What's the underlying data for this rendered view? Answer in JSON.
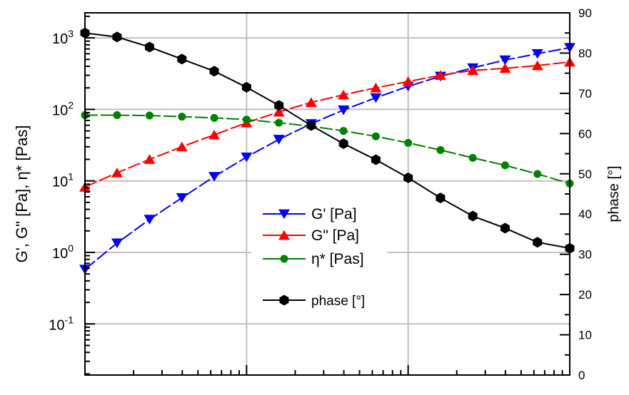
{
  "chart_data": {
    "type": "line",
    "x_log_scale": true,
    "x_tick_labels": [],
    "x": [
      0.1,
      0.158,
      0.251,
      0.398,
      0.631,
      1.0,
      1.585,
      2.512,
      3.981,
      6.31,
      10.0,
      15.85,
      25.12,
      39.81,
      63.1,
      100.0
    ],
    "left_axis": {
      "label": "G', G\" [Pa], η* [Pas]",
      "scale": "log",
      "range": [
        0.02,
        1500
      ],
      "tick_labels": [
        {
          "base": "10",
          "exp": "3"
        },
        {
          "base": "10",
          "exp": "2"
        },
        {
          "base": "10",
          "exp": "1"
        },
        {
          "base": "10",
          "exp": "0"
        },
        {
          "base": "10",
          "exp": "-1"
        }
      ]
    },
    "right_axis": {
      "label": "phase [°]",
      "scale": "linear",
      "range": [
        0,
        90
      ],
      "tick_labels": [
        "0",
        "10",
        "20",
        "30",
        "40",
        "50",
        "60",
        "70",
        "80",
        "90"
      ]
    },
    "series": [
      {
        "name": "G' [Pa]",
        "axis": "left",
        "color": "#0000ff",
        "marker": "triangle-down",
        "values": [
          0.58,
          1.35,
          2.9,
          5.8,
          11.5,
          21.5,
          38,
          63,
          98,
          145,
          210,
          290,
          380,
          490,
          600,
          730
        ]
      },
      {
        "name": "G\" [Pa]",
        "axis": "left",
        "color": "#ff0000",
        "marker": "triangle-up",
        "values": [
          8.2,
          13,
          20,
          30,
          44,
          65,
          92,
          125,
          160,
          200,
          245,
          300,
          350,
          375,
          410,
          460
        ]
      },
      {
        "name": "η* [Pas]",
        "axis": "left",
        "color": "#008000",
        "marker": "circle",
        "values": [
          83,
          83,
          82,
          79,
          76,
          72,
          65,
          58,
          50,
          42,
          34,
          27,
          21,
          16.5,
          12.5,
          9.2
        ]
      },
      {
        "name": "phase [°]",
        "axis": "right",
        "color": "#000000",
        "marker": "hexagon",
        "values": [
          85,
          84,
          81.5,
          78.5,
          75.5,
          71.5,
          67,
          62,
          57.5,
          53.5,
          49,
          44,
          39.5,
          36.5,
          33,
          31.5
        ]
      }
    ],
    "grid": true,
    "legend_position": "center"
  }
}
